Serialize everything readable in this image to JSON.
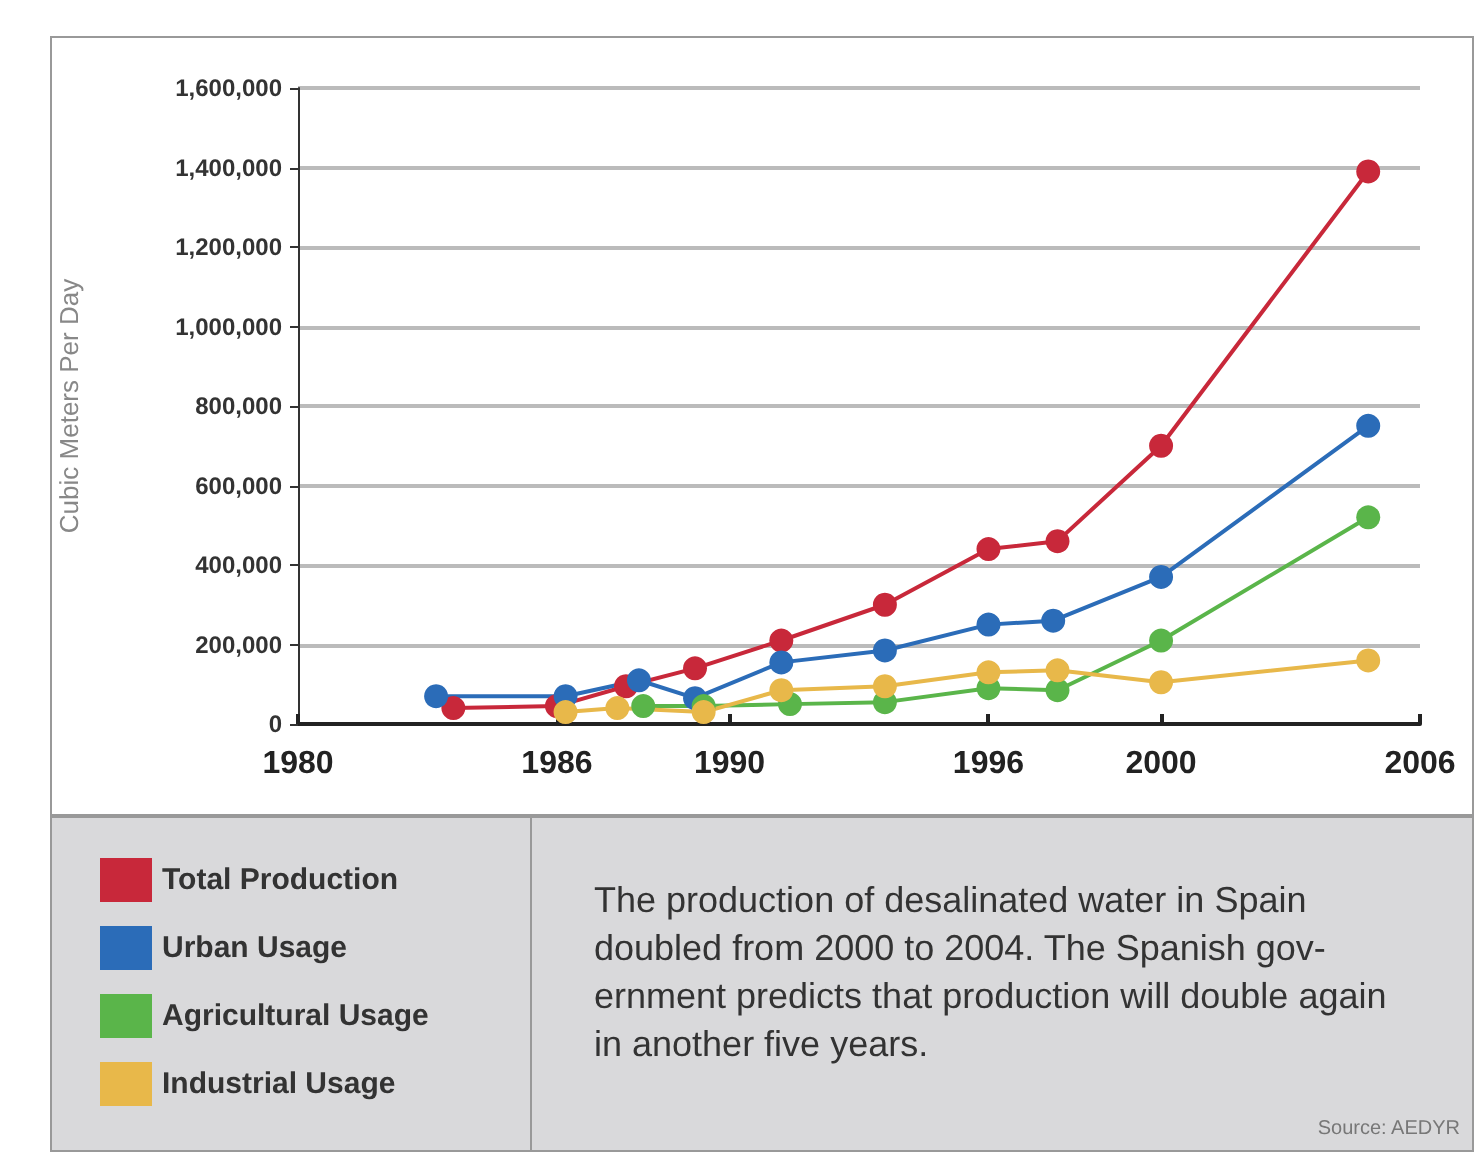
{
  "chart_data": {
    "type": "line",
    "ylabel": "Cubic Meters Per Day",
    "xlim": [
      1980,
      2006
    ],
    "xticks": [
      1980,
      1986,
      1990,
      1996,
      2000,
      2006
    ],
    "ylim": [
      0,
      1600000
    ],
    "yticks": [
      0,
      {
        "value": 200000,
        "label": "200,000"
      },
      {
        "value": 400000,
        "label": "400,000"
      },
      {
        "value": 600000,
        "label": "600,000"
      },
      {
        "value": 800000,
        "label": "800,000"
      },
      {
        "value": 1000000,
        "label": "1,000,000"
      },
      {
        "value": 1200000,
        "label": "1,200,000"
      },
      {
        "value": 1400000,
        "label": "1,400,000"
      },
      {
        "value": 1600000,
        "label": "1,600,000"
      }
    ],
    "grid": "y",
    "marker": "circle",
    "legend": "bottom left",
    "series": [
      {
        "name": "Total Production",
        "color": "#c8283a",
        "x": [
          1983.6,
          1986,
          1987.6,
          1989.2,
          1991.2,
          1993.6,
          1996,
          1997.6,
          2000,
          2004.8
        ],
        "values": [
          40000,
          45000,
          95000,
          140000,
          210000,
          300000,
          440000,
          460000,
          700000,
          1390000
        ]
      },
      {
        "name": "Urban Usage",
        "color": "#2b6cb8",
        "x": [
          1983.2,
          1986.2,
          1987.9,
          1989.2,
          1991.2,
          1993.6,
          1996,
          1997.5,
          2000,
          2004.8
        ],
        "values": [
          70000,
          70000,
          110000,
          65000,
          155000,
          185000,
          250000,
          260000,
          370000,
          750000
        ]
      },
      {
        "name": "Agricultural Usage",
        "color": "#5ab54a",
        "x": [
          1988,
          1989.4,
          1991.4,
          1993.6,
          1996,
          1997.6,
          2000,
          2004.8
        ],
        "values": [
          45000,
          45000,
          50000,
          55000,
          90000,
          85000,
          210000,
          520000
        ]
      },
      {
        "name": "Industrial Usage",
        "color": "#e8b84a",
        "x": [
          1986.2,
          1987.4,
          1989.4,
          1991.2,
          1993.6,
          1996,
          1997.6,
          2000,
          2004.8
        ],
        "values": [
          30000,
          40000,
          30000,
          85000,
          95000,
          130000,
          135000,
          105000,
          160000
        ]
      }
    ],
    "annotations": [
      "The production of desalinated water in Spain doubled from 2000 to 2004. The Spanish gov-ernment predicts that production will double again in another five years.",
      "Source: AEDYR"
    ]
  }
}
